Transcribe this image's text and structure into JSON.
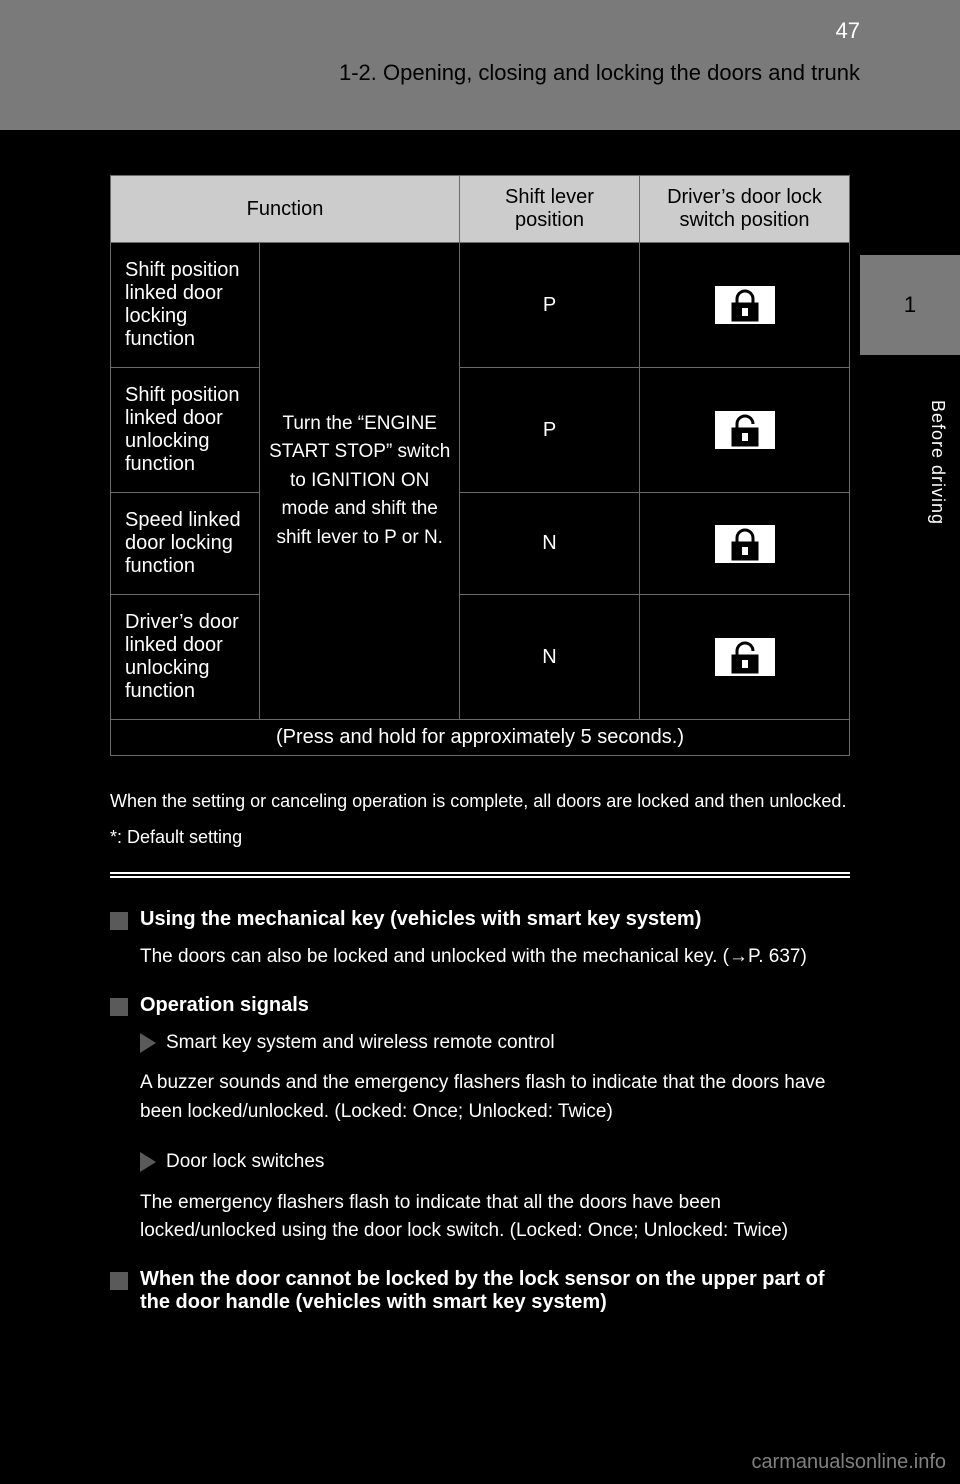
{
  "header": {
    "page_number": "47",
    "section": "1-2. Opening, closing and locking the doors and trunk"
  },
  "side_tab": {
    "number": "1",
    "label": "Before driving"
  },
  "table": {
    "headers": {
      "function": "Function",
      "shift": "Shift lever position",
      "lock": "Driver’s door lock switch position"
    },
    "rows": [
      {
        "fn": "Shift position linked door locking function",
        "shift": "P",
        "icon": "lock"
      },
      {
        "fn": "Shift position linked door unlocking function",
        "shift": "P",
        "icon": "unlock"
      },
      {
        "fn": "Speed linked door locking function",
        "shift": "N",
        "icon": "lock"
      },
      {
        "fn": "Driver’s door linked door unlocking function",
        "shift": "N",
        "icon": "unlock"
      }
    ],
    "multi_switch": "Turn the “ENGINE START STOP” switch to IGNITION ON mode and shift the shift lever to P or N.",
    "hold_text": "(Press and hold for approximately 5 seconds.)"
  },
  "pre_divider": [
    "When the setting or canceling operation is complete, all doors are locked and then unlocked.",
    "*: Default setting"
  ],
  "sections": [
    {
      "title": "Using the mechanical key (vehicles with smart key system)",
      "para": "The doors can also be locked and unlocked with the mechanical key. (→P. 637)"
    },
    {
      "title": "Operation signals",
      "subs": [
        {
          "lead": "Smart key system and wireless remote control",
          "text": "A buzzer sounds and the emergency flashers flash to indicate that the doors have been locked/unlocked. (Locked: Once; Unlocked: Twice)"
        },
        {
          "lead": "Door lock switches",
          "text": "The emergency flashers flash to indicate that all the doors have been locked/unlocked using the door lock switch. (Locked: Once; Unlocked: Twice)"
        }
      ]
    },
    {
      "title": "When the door cannot be locked by the lock sensor on the upper part of the door handle (vehicles with smart key system)",
      "para": ""
    }
  ],
  "footer": "carmanualsonline.info"
}
